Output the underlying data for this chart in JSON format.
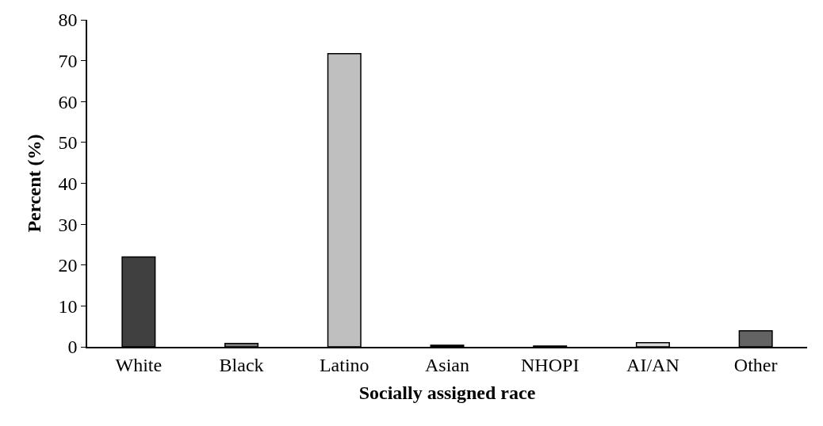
{
  "chart_data": {
    "type": "bar",
    "xlabel": "Socially assigned race",
    "ylabel": "Percent (%)",
    "categories": [
      "White",
      "Black",
      "Latino",
      "Asian",
      "NHOPI",
      "AI/AN",
      "Other"
    ],
    "values": [
      22,
      0.8,
      71.7,
      0.4,
      0.2,
      1.0,
      3.9
    ],
    "colors": [
      "#404040",
      "#808080",
      "#bfbfbf",
      "#0d0d0d",
      "#262626",
      "#d9d9d9",
      "#636363"
    ],
    "ylim": [
      0,
      80
    ],
    "yticks": [
      0,
      10,
      20,
      30,
      40,
      50,
      60,
      70,
      80
    ]
  }
}
